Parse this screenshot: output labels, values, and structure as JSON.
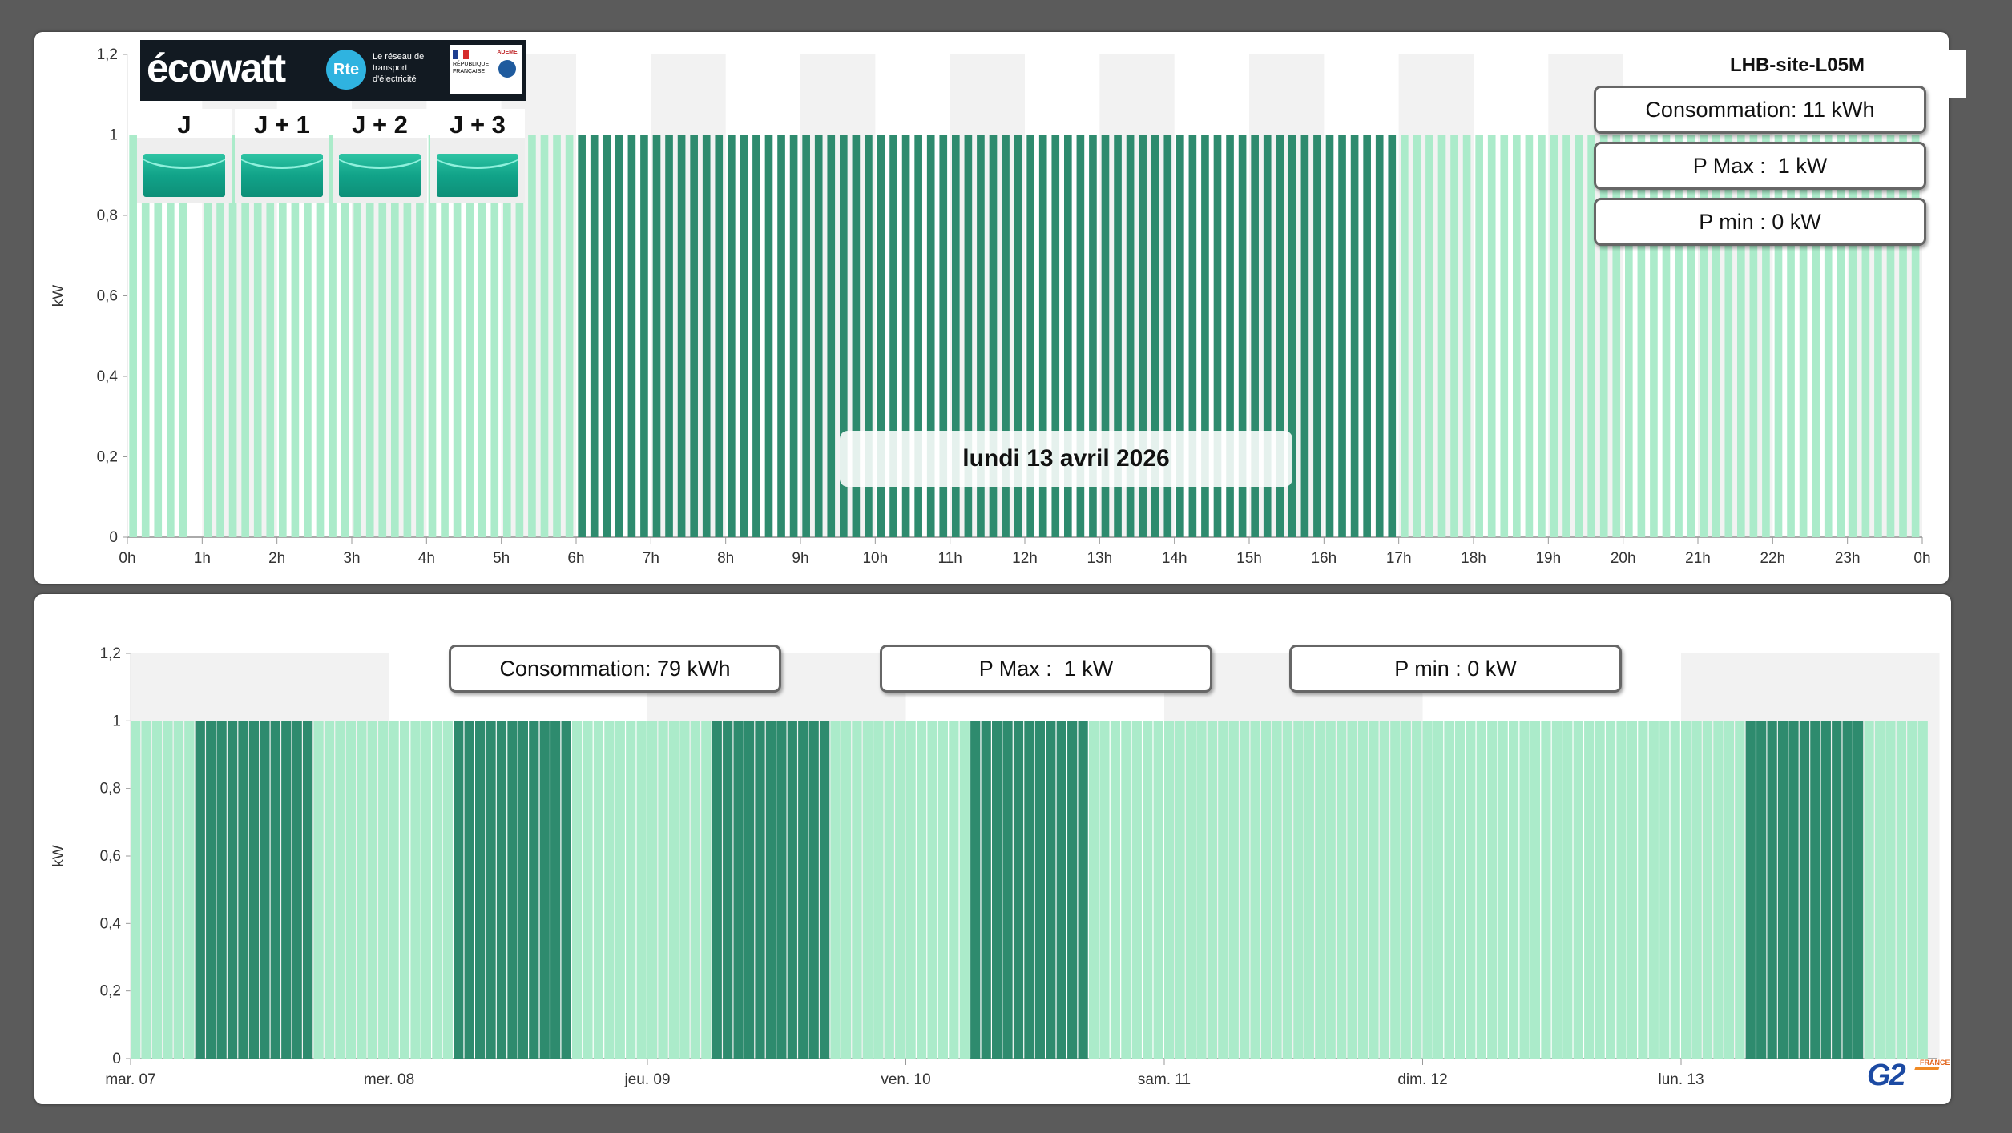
{
  "top_panel": {
    "site_title": "LHB-site-L05M",
    "date_label": "lundi 13 avril 2026",
    "stats": {
      "consommation": "Consommation: 11 kWh",
      "pmax": "P Max :  1 kW",
      "pmin": "P min : 0 kW"
    },
    "ecowatt": {
      "logo_text": "écowatt",
      "rte_mark": "Rte",
      "rte_caption": "Le réseau de transport d'électricité",
      "republique": "RÉPUBLIQUE FRANÇAISE",
      "ademe": "ADEME",
      "days": [
        "J",
        "J + 1",
        "J + 2",
        "J + 3"
      ]
    }
  },
  "bottom_panel": {
    "stats": {
      "consommation": "Consommation: 79 kWh",
      "pmax": "P Max :  1 kW",
      "pmin": "P min : 0 kW"
    },
    "logo_text": "G2",
    "logo_sup": "FRANCE"
  },
  "colors": {
    "light_bar": "#abebca",
    "dark_bar": "#2e8b6e",
    "band_gray": "#f2f2f2"
  },
  "chart_data": [
    {
      "type": "bar",
      "ylabel": "kW",
      "ylim": [
        0,
        1.2
      ],
      "yticks": [
        "0",
        "0,2",
        "0,4",
        "0,6",
        "0,8",
        "1",
        "1,2"
      ],
      "xticks": [
        "0h",
        "1h",
        "2h",
        "3h",
        "4h",
        "5h",
        "6h",
        "7h",
        "8h",
        "9h",
        "10h",
        "11h",
        "12h",
        "13h",
        "14h",
        "15h",
        "16h",
        "17h",
        "18h",
        "19h",
        "20h",
        "21h",
        "22h",
        "23h",
        "0h"
      ],
      "interval_minutes": 10,
      "highlight_range_hours": [
        6,
        17
      ],
      "value_per_interval": 1,
      "gap_intervals": [
        5
      ],
      "grid": "alternating hourly bands"
    },
    {
      "type": "bar",
      "ylabel": "kW",
      "ylim": [
        0,
        1.2
      ],
      "yticks": [
        "0",
        "0,2",
        "0,4",
        "0,6",
        "0,8",
        "1",
        "1,2"
      ],
      "xticks": [
        "mar. 07",
        "mer. 08",
        "jeu. 09",
        "ven. 10",
        "sam. 11",
        "dim. 12",
        "lun. 13"
      ],
      "interval_minutes": 60,
      "days": 7,
      "value_per_interval": 1,
      "highlight_ranges_hours": [
        [
          6,
          17
        ]
      ],
      "highlight_days": [
        "mar. 07",
        "mer. 08",
        "jeu. 09",
        "ven. 10",
        "lun. 13"
      ],
      "grid": "alternating daily bands"
    }
  ]
}
